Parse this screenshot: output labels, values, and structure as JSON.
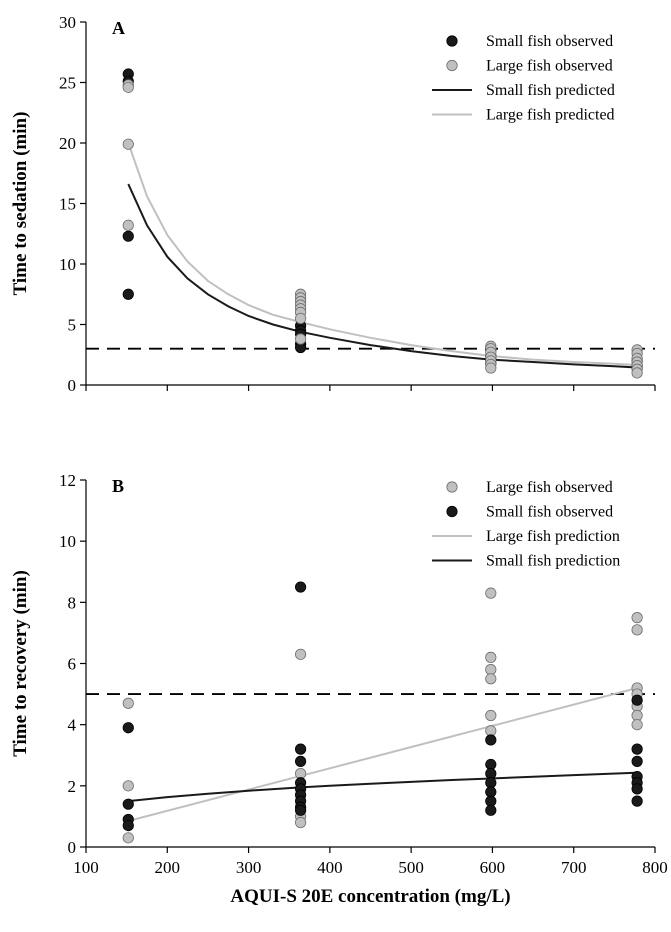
{
  "colors": {
    "small": "#1a1a1a",
    "large": "#c0c0c0",
    "axis": "#000000",
    "reference_line": "#000000"
  },
  "chart_data": [
    {
      "type": "scatter",
      "panel_label": "A",
      "title": "",
      "xlabel": "AQUI-S 20E concentration (mg/L)",
      "ylabel": "Time to sedation (min)",
      "xlim": [
        100,
        800
      ],
      "ylim": [
        0,
        30
      ],
      "xticks": [
        100,
        200,
        300,
        400,
        500,
        600,
        700,
        800
      ],
      "yticks": [
        0,
        5,
        10,
        15,
        20,
        25,
        30
      ],
      "reference_line_y": 3,
      "legend_position": "top-right",
      "series": [
        {
          "name": "Small fish observed",
          "kind": "points",
          "color": "small",
          "points": [
            [
              152,
              25.7
            ],
            [
              152,
              25.1
            ],
            [
              152,
              12.3
            ],
            [
              152,
              7.5
            ],
            [
              364,
              4.9
            ],
            [
              364,
              4.5
            ],
            [
              364,
              4.2
            ],
            [
              364,
              3.4
            ],
            [
              364,
              3.1
            ],
            [
              598,
              2.9
            ],
            [
              598,
              2.4
            ],
            [
              598,
              2.1
            ],
            [
              598,
              1.8
            ],
            [
              778,
              2.0
            ],
            [
              778,
              1.6
            ],
            [
              778,
              1.4
            ]
          ]
        },
        {
          "name": "Large fish observed",
          "kind": "points",
          "color": "large",
          "points": [
            [
              152,
              24.8
            ],
            [
              152,
              24.6
            ],
            [
              152,
              19.9
            ],
            [
              152,
              13.2
            ],
            [
              364,
              7.5
            ],
            [
              364,
              7.2
            ],
            [
              364,
              6.9
            ],
            [
              364,
              6.6
            ],
            [
              364,
              6.3
            ],
            [
              364,
              6.0
            ],
            [
              364,
              5.5
            ],
            [
              364,
              3.8
            ],
            [
              598,
              3.2
            ],
            [
              598,
              3.0
            ],
            [
              598,
              2.7
            ],
            [
              598,
              2.3
            ],
            [
              598,
              2.0
            ],
            [
              598,
              1.7
            ],
            [
              598,
              1.4
            ],
            [
              778,
              2.9
            ],
            [
              778,
              2.6
            ],
            [
              778,
              2.2
            ],
            [
              778,
              1.9
            ],
            [
              778,
              1.6
            ],
            [
              778,
              1.3
            ],
            [
              778,
              1.0
            ]
          ]
        },
        {
          "name": "Small fish predicted",
          "kind": "line",
          "color": "small",
          "points": [
            [
              152,
              16.6
            ],
            [
              175,
              13.2
            ],
            [
              200,
              10.6
            ],
            [
              225,
              8.8
            ],
            [
              250,
              7.5
            ],
            [
              275,
              6.5
            ],
            [
              300,
              5.7
            ],
            [
              330,
              5.0
            ],
            [
              364,
              4.4
            ],
            [
              400,
              3.9
            ],
            [
              450,
              3.3
            ],
            [
              500,
              2.8
            ],
            [
              550,
              2.4
            ],
            [
              598,
              2.1
            ],
            [
              650,
              1.9
            ],
            [
              700,
              1.7
            ],
            [
              750,
              1.55
            ],
            [
              778,
              1.45
            ]
          ]
        },
        {
          "name": "Large fish predicted",
          "kind": "line",
          "color": "large",
          "points": [
            [
              152,
              20.0
            ],
            [
              175,
              15.6
            ],
            [
              200,
              12.4
            ],
            [
              225,
              10.2
            ],
            [
              250,
              8.6
            ],
            [
              275,
              7.5
            ],
            [
              300,
              6.6
            ],
            [
              330,
              5.8
            ],
            [
              364,
              5.2
            ],
            [
              400,
              4.6
            ],
            [
              450,
              3.9
            ],
            [
              500,
              3.3
            ],
            [
              550,
              2.8
            ],
            [
              598,
              2.4
            ],
            [
              650,
              2.1
            ],
            [
              700,
              1.9
            ],
            [
              750,
              1.75
            ],
            [
              778,
              1.65
            ]
          ]
        }
      ],
      "legend": [
        {
          "label": "Small fish observed",
          "kind": "points",
          "color": "small"
        },
        {
          "label": "Large fish observed",
          "kind": "points",
          "color": "large"
        },
        {
          "label": "Small fish predicted",
          "kind": "line",
          "color": "small"
        },
        {
          "label": "Large fish predicted",
          "kind": "line",
          "color": "large"
        }
      ]
    },
    {
      "type": "scatter",
      "panel_label": "B",
      "title": "",
      "xlabel": "AQUI-S 20E concentration (mg/L)",
      "ylabel": "Time to recovery (min)",
      "xlim": [
        100,
        800
      ],
      "ylim": [
        0,
        12
      ],
      "xticks": [
        100,
        200,
        300,
        400,
        500,
        600,
        700,
        800
      ],
      "yticks": [
        0,
        2,
        4,
        6,
        8,
        10,
        12
      ],
      "reference_line_y": 5,
      "legend_position": "top-right",
      "series": [
        {
          "name": "Large fish observed",
          "kind": "points",
          "color": "large",
          "points": [
            [
              152,
              4.7
            ],
            [
              152,
              2.0
            ],
            [
              152,
              0.3
            ],
            [
              364,
              6.3
            ],
            [
              364,
              2.4
            ],
            [
              364,
              1.0
            ],
            [
              364,
              0.8
            ],
            [
              598,
              8.3
            ],
            [
              598,
              6.2
            ],
            [
              598,
              5.8
            ],
            [
              598,
              5.5
            ],
            [
              598,
              4.3
            ],
            [
              598,
              3.8
            ],
            [
              778,
              7.5
            ],
            [
              778,
              7.1
            ],
            [
              778,
              5.2
            ],
            [
              778,
              5.0
            ],
            [
              778,
              4.6
            ],
            [
              778,
              4.3
            ],
            [
              778,
              4.0
            ]
          ]
        },
        {
          "name": "Small fish observed",
          "kind": "points",
          "color": "small",
          "points": [
            [
              152,
              3.9
            ],
            [
              152,
              1.4
            ],
            [
              152,
              0.9
            ],
            [
              152,
              0.7
            ],
            [
              364,
              8.5
            ],
            [
              364,
              3.2
            ],
            [
              364,
              2.8
            ],
            [
              364,
              2.1
            ],
            [
              364,
              1.9
            ],
            [
              364,
              1.7
            ],
            [
              364,
              1.5
            ],
            [
              364,
              1.3
            ],
            [
              364,
              1.2
            ],
            [
              598,
              3.5
            ],
            [
              598,
              2.7
            ],
            [
              598,
              2.4
            ],
            [
              598,
              2.1
            ],
            [
              598,
              1.8
            ],
            [
              598,
              1.5
            ],
            [
              598,
              1.2
            ],
            [
              778,
              4.8
            ],
            [
              778,
              3.2
            ],
            [
              778,
              2.8
            ],
            [
              778,
              2.3
            ],
            [
              778,
              2.1
            ],
            [
              778,
              1.9
            ],
            [
              778,
              1.5
            ]
          ]
        },
        {
          "name": "Large fish prediction",
          "kind": "line",
          "color": "large",
          "points": [
            [
              152,
              0.85
            ],
            [
              778,
              5.2
            ]
          ]
        },
        {
          "name": "Small fish prediction",
          "kind": "line",
          "color": "small",
          "points": [
            [
              152,
              1.5
            ],
            [
              200,
              1.63
            ],
            [
              250,
              1.74
            ],
            [
              300,
              1.84
            ],
            [
              364,
              1.95
            ],
            [
              400,
              2.0
            ],
            [
              450,
              2.07
            ],
            [
              500,
              2.13
            ],
            [
              550,
              2.19
            ],
            [
              598,
              2.24
            ],
            [
              650,
              2.3
            ],
            [
              700,
              2.35
            ],
            [
              778,
              2.43
            ]
          ]
        }
      ],
      "legend": [
        {
          "label": "Large fish observed",
          "kind": "points",
          "color": "large"
        },
        {
          "label": "Small fish observed",
          "kind": "points",
          "color": "small"
        },
        {
          "label": "Large fish prediction",
          "kind": "line",
          "color": "large"
        },
        {
          "label": "Small fish prediction",
          "kind": "line",
          "color": "small"
        }
      ]
    }
  ]
}
